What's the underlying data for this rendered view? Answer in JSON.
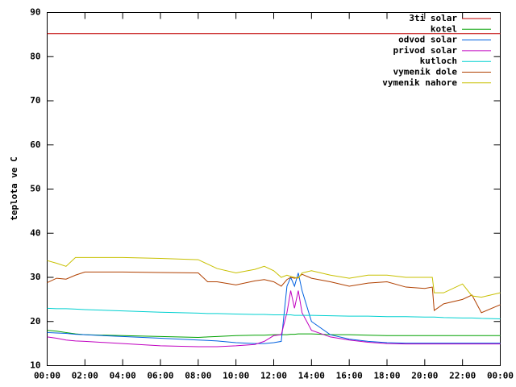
{
  "chart_data": {
    "type": "line",
    "y_label": "teplota ve C",
    "x": [
      0,
      0.5,
      1,
      1.5,
      2,
      4,
      6,
      8,
      8.5,
      9,
      10,
      11,
      11.5,
      12,
      12.4,
      12.7,
      12.9,
      13.1,
      13.3,
      13.5,
      14,
      15,
      16,
      17,
      18,
      19,
      20,
      20.4,
      20.5,
      21,
      22,
      22.5,
      23,
      24
    ],
    "xlim": [
      0,
      24
    ],
    "xticks": [
      {
        "value": 0,
        "label": "00:00"
      },
      {
        "value": 2,
        "label": "02:00"
      },
      {
        "value": 4,
        "label": "04:00"
      },
      {
        "value": 6,
        "label": "06:00"
      },
      {
        "value": 8,
        "label": "08:00"
      },
      {
        "value": 10,
        "label": "10:00"
      },
      {
        "value": 12,
        "label": "12:00"
      },
      {
        "value": 14,
        "label": "14:00"
      },
      {
        "value": 16,
        "label": "16:00"
      },
      {
        "value": 18,
        "label": "18:00"
      },
      {
        "value": 20,
        "label": "20:00"
      },
      {
        "value": 22,
        "label": "22:00"
      },
      {
        "value": 24,
        "label": "00:00"
      }
    ],
    "ylim": [
      10,
      90
    ],
    "yticks": [
      10,
      20,
      30,
      40,
      50,
      60,
      70,
      80,
      90
    ],
    "legend": "top-right",
    "series": [
      {
        "name": "3ti solar",
        "color": "#c00000",
        "values": [
          85.2,
          85.2,
          85.2,
          85.2,
          85.2,
          85.2,
          85.2,
          85.2,
          85.2,
          85.2,
          85.2,
          85.2,
          85.2,
          85.2,
          85.2,
          85.2,
          85.2,
          85.2,
          85.2,
          85.2,
          85.2,
          85.2,
          85.2,
          85.2,
          85.2,
          85.2,
          85.2,
          85.2,
          85.2,
          85.2,
          85.2,
          85.2,
          85.2,
          85.2
        ]
      },
      {
        "name": "kotel",
        "color": "#00a000",
        "values": [
          18,
          17.8,
          17.5,
          17.2,
          17,
          16.8,
          16.6,
          16.4,
          16.5,
          16.6,
          16.8,
          16.9,
          16.9,
          17,
          17,
          17,
          17.1,
          17.1,
          17.2,
          17.2,
          17.2,
          17,
          17,
          16.9,
          16.8,
          16.8,
          16.8,
          16.8,
          16.8,
          16.8,
          16.8,
          16.8,
          16.8,
          16.8
        ]
      },
      {
        "name": "odvod solar",
        "color": "#0060e0",
        "values": [
          17.5,
          17.4,
          17.3,
          17.1,
          17,
          16.6,
          16.2,
          15.8,
          15.7,
          15.6,
          15.2,
          15,
          15,
          15.2,
          15.5,
          28,
          30,
          28,
          31,
          27,
          20,
          17,
          16,
          15.5,
          15.2,
          15.1,
          15.1,
          15.1,
          15.1,
          15.1,
          15.1,
          15.1,
          15.1,
          15.1
        ]
      },
      {
        "name": "privod solar",
        "color": "#c000c0",
        "values": [
          16.5,
          16.2,
          15.8,
          15.6,
          15.5,
          15,
          14.5,
          14.3,
          14.3,
          14.3,
          14.5,
          14.8,
          15.5,
          16.8,
          17,
          22,
          27,
          23,
          27,
          22,
          18,
          16.5,
          15.8,
          15.3,
          15,
          14.9,
          14.9,
          14.9,
          14.9,
          14.9,
          14.9,
          14.9,
          14.9,
          14.9
        ]
      },
      {
        "name": "kutloch",
        "color": "#00d0d0",
        "values": [
          23,
          22.9,
          22.9,
          22.8,
          22.7,
          22.4,
          22.1,
          21.9,
          21.8,
          21.8,
          21.7,
          21.6,
          21.6,
          21.5,
          21.5,
          21.5,
          21.5,
          21.4,
          21.4,
          21.4,
          21.4,
          21.3,
          21.2,
          21.2,
          21.1,
          21.1,
          21,
          21,
          21,
          20.9,
          20.8,
          20.8,
          20.7,
          20.6
        ]
      },
      {
        "name": "vymenik dole",
        "color": "#b04000",
        "values": [
          28.8,
          29.8,
          29.6,
          30.5,
          31.2,
          31.2,
          31.1,
          31,
          29,
          29,
          28.3,
          29.2,
          29.5,
          29,
          28,
          29.5,
          30,
          29.8,
          30,
          30.7,
          29.8,
          29,
          28,
          28.7,
          29,
          27.8,
          27.5,
          27.8,
          22.5,
          24,
          25,
          26,
          22,
          23.8
        ]
      },
      {
        "name": "vymenik nahore",
        "color": "#c8c000",
        "values": [
          33.8,
          33.2,
          32.5,
          34.5,
          34.5,
          34.5,
          34.3,
          34,
          33,
          32,
          31,
          31.8,
          32.5,
          31.5,
          30,
          30.5,
          30.2,
          30,
          29.8,
          31,
          31.5,
          30.5,
          29.8,
          30.5,
          30.5,
          30,
          30,
          30,
          26.5,
          26.5,
          28.5,
          25.8,
          25.5,
          26.5
        ]
      }
    ]
  }
}
